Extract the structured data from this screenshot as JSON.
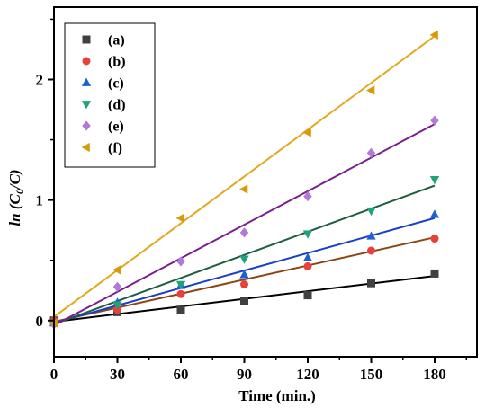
{
  "chart_data": {
    "type": "scatter",
    "xlabel": "Time (min.)",
    "ylabel": {
      "prefix": "ln",
      "open": "(C",
      "subscript": "0",
      "close": "/C)"
    },
    "xlim": [
      0,
      200
    ],
    "ylim": [
      -0.3,
      2.6
    ],
    "xticks": [
      0,
      30,
      60,
      90,
      120,
      150,
      180
    ],
    "xtick_labels": [
      "0",
      "30",
      "60",
      "90",
      "120",
      "150",
      "180"
    ],
    "yticks": [
      0,
      1,
      2
    ],
    "ytick_labels": [
      "0",
      "1",
      "2"
    ],
    "legend_position": "top-left",
    "fit_lines": true,
    "series": [
      {
        "name": "(a)",
        "marker": "square",
        "color": "#404040",
        "line_color": "#000000",
        "x": [
          0,
          30,
          60,
          90,
          120,
          150,
          180
        ],
        "y": [
          0,
          0.07,
          0.09,
          0.16,
          0.21,
          0.31,
          0.39
        ],
        "fit": [
          0,
          180,
          -0.01,
          0.37
        ]
      },
      {
        "name": "(b)",
        "marker": "circle",
        "color": "#e8413a",
        "line_color": "#8b4513",
        "x": [
          0,
          30,
          60,
          90,
          120,
          150,
          180
        ],
        "y": [
          0,
          0.09,
          0.22,
          0.3,
          0.45,
          0.58,
          0.68
        ],
        "fit": [
          0,
          180,
          -0.01,
          0.69
        ]
      },
      {
        "name": "(c)",
        "marker": "triangle-up",
        "color": "#1f5fd6",
        "line_color": "#1a3fc7",
        "x": [
          0,
          30,
          60,
          90,
          120,
          150,
          180
        ],
        "y": [
          -0.02,
          0.15,
          0.29,
          0.38,
          0.52,
          0.7,
          0.88
        ],
        "fit": [
          0,
          180,
          -0.02,
          0.85
        ]
      },
      {
        "name": "(d)",
        "marker": "triangle-down",
        "color": "#1fa37a",
        "line_color": "#1e5e3e",
        "x": [
          0,
          30,
          60,
          90,
          120,
          150,
          180
        ],
        "y": [
          -0.02,
          0.13,
          0.3,
          0.51,
          0.72,
          0.91,
          1.17
        ],
        "fit": [
          0,
          180,
          -0.03,
          1.12
        ]
      },
      {
        "name": "(e)",
        "marker": "diamond",
        "color": "#b07ad6",
        "line_color": "#7a1f8e",
        "x": [
          0,
          30,
          60,
          90,
          120,
          150,
          180
        ],
        "y": [
          -0.03,
          0.28,
          0.49,
          0.73,
          1.03,
          1.39,
          1.66
        ],
        "fit": [
          0,
          180,
          -0.04,
          1.63
        ]
      },
      {
        "name": "(f)",
        "marker": "triangle-left",
        "color": "#d99a0a",
        "line_color": "#e0a91e",
        "x": [
          0,
          30,
          60,
          90,
          120,
          150,
          180
        ],
        "y": [
          -0.02,
          0.42,
          0.85,
          1.09,
          1.56,
          1.91,
          2.37
        ],
        "fit": [
          0,
          180,
          0.03,
          2.36
        ]
      }
    ]
  }
}
